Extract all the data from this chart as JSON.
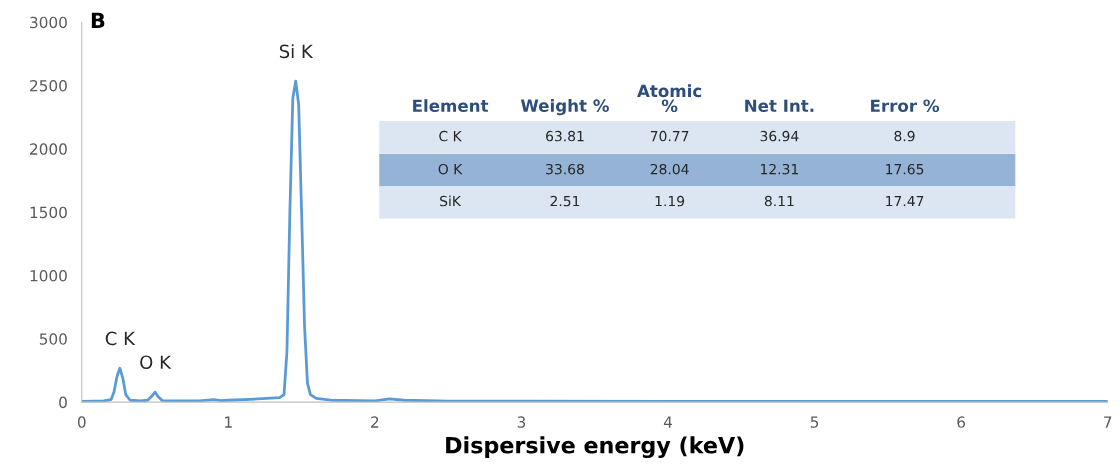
{
  "chart_data": {
    "type": "line",
    "xlabel": "Dispersive energy (keV)",
    "x": [
      0,
      0.1,
      0.15,
      0.2,
      0.22,
      0.24,
      0.26,
      0.28,
      0.3,
      0.33,
      0.4,
      0.45,
      0.48,
      0.5,
      0.52,
      0.55,
      0.6,
      0.8,
      0.9,
      0.95,
      1.0,
      1.2,
      1.35,
      1.38,
      1.4,
      1.42,
      1.44,
      1.46,
      1.48,
      1.5,
      1.52,
      1.54,
      1.56,
      1.6,
      1.7,
      2.0,
      2.1,
      2.2,
      2.5,
      3,
      4,
      5,
      6,
      7
    ],
    "series": [
      {
        "color": "#5b9bd5",
        "values": [
          5,
          8,
          10,
          20,
          80,
          200,
          268,
          190,
          60,
          15,
          10,
          15,
          50,
          80,
          45,
          12,
          10,
          10,
          20,
          12,
          15,
          25,
          35,
          60,
          400,
          1500,
          2400,
          2535,
          2350,
          1500,
          600,
          150,
          60,
          30,
          15,
          10,
          25,
          15,
          8,
          8,
          6,
          5,
          5,
          5
        ]
      }
    ],
    "xlim": [
      0,
      7
    ],
    "xticks": [
      0,
      1,
      2,
      3,
      4,
      5,
      6,
      7
    ],
    "ylim": [
      0,
      3000
    ],
    "yticks": [
      0,
      500,
      1000,
      1500,
      2000,
      2500,
      3000
    ],
    "grid": false,
    "legend": false,
    "annotations": [
      "B",
      {
        "text": "C K",
        "x": 0.26,
        "y": 268
      },
      {
        "text": "O K",
        "x": 0.5,
        "y": 80
      },
      {
        "text": "Si K",
        "x": 1.46,
        "y": 2535
      },
      "Element",
      "Weight %",
      "Atomic\n%",
      "Net Int.",
      "Error %",
      "C K",
      "63.81",
      "70.77",
      "36.94",
      "8.9",
      "O K",
      "33.68",
      "28.04",
      "12.31",
      "17.65",
      "SiK",
      "2.51",
      "1.19",
      "8.11",
      "17.47"
    ]
  }
}
